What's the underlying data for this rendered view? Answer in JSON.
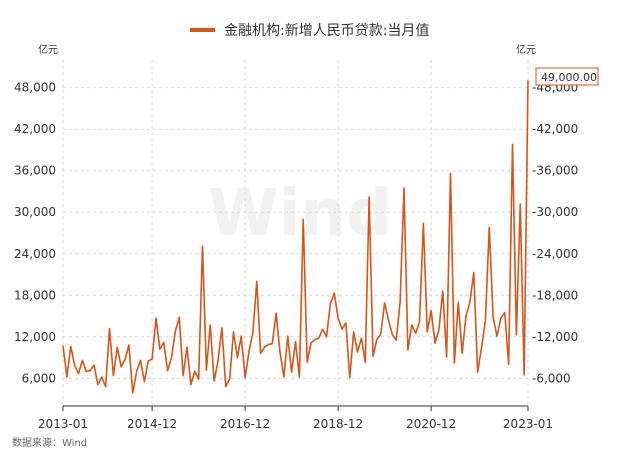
{
  "chart_data": {
    "type": "line",
    "legend": "金融机构:新增人民币贷款:当月值",
    "yunit_left": "亿元",
    "yunit_right": "亿元",
    "source": "数据来源：Wind",
    "watermark": "Wind",
    "ylim": [
      2000,
      52000
    ],
    "yticks": [
      6000,
      12000,
      18000,
      24000,
      30000,
      36000,
      42000,
      48000
    ],
    "ytick_labels": [
      "6,000",
      "12,000",
      "18,000",
      "24,000",
      "30,000",
      "36,000",
      "42,000",
      "48,000"
    ],
    "xticks": [
      {
        "index": 0,
        "label": "2013-01"
      },
      {
        "index": 23,
        "label": "2014-12"
      },
      {
        "index": 47,
        "label": "2016-12"
      },
      {
        "index": 71,
        "label": "2018-12"
      },
      {
        "index": 95,
        "label": "2020-12"
      },
      {
        "index": 120,
        "label": "2023-01"
      }
    ],
    "last_value_label": "49,000.00",
    "grid": true,
    "color": "#d2561e",
    "series": [
      {
        "x_start": "2013-01",
        "frequency": "monthly",
        "values": [
          10700,
          6200,
          10600,
          7900,
          6700,
          8600,
          7000,
          7100,
          7900,
          5100,
          6200,
          4800,
          13200,
          6400,
          10500,
          7700,
          8700,
          10800,
          3900,
          7000,
          8600,
          5500,
          8500,
          8800,
          14700,
          10200,
          11200,
          7100,
          9000,
          12800,
          14800,
          6400,
          10500,
          5100,
          7000,
          5900,
          25100,
          7200,
          13700,
          5600,
          8500,
          13300,
          4800,
          5900,
          12700,
          9000,
          12100,
          6100,
          9900,
          12600,
          20000,
          9600,
          10500,
          10900,
          11000,
          15400,
          9800,
          6200,
          12100,
          6900,
          11300,
          6200,
          29000,
          8300,
          11100,
          11600,
          11800,
          13100,
          12000,
          16800,
          18300,
          14700,
          13100,
          14000,
          6100,
          12700,
          9800,
          11800,
          8300,
          32200,
          9200,
          11600,
          12400,
          16900,
          14400,
          12300,
          11500,
          17100,
          33500,
          10100,
          13700,
          12500,
          14200,
          28400,
          12700,
          15800,
          11100,
          13000,
          18600,
          9100,
          35600,
          8200,
          17000,
          9600,
          15000,
          17000,
          21300,
          6900,
          10400,
          14300,
          27800,
          14800,
          12100,
          14700,
          15500,
          8000,
          39800,
          12300,
          31200,
          6500
        ]
      }
    ],
    "points": [
      {
        "x": "2013-01",
        "y": 10700
      },
      {
        "x": "2013-02",
        "y": 6200
      },
      {
        "x": "2013-03",
        "y": 10600
      },
      {
        "x": "2013-04",
        "y": 7900
      },
      {
        "x": "2013-05",
        "y": 6700
      },
      {
        "x": "2013-06",
        "y": 8600
      },
      {
        "x": "2013-07",
        "y": 7000
      },
      {
        "x": "2013-08",
        "y": 7100
      },
      {
        "x": "2013-09",
        "y": 7900
      },
      {
        "x": "2013-10",
        "y": 5100
      },
      {
        "x": "2013-11",
        "y": 6200
      },
      {
        "x": "2013-12",
        "y": 4800
      },
      {
        "x": "2014-01",
        "y": 13200
      },
      {
        "x": "2014-02",
        "y": 6400
      },
      {
        "x": "2014-03",
        "y": 10500
      },
      {
        "x": "2014-04",
        "y": 7700
      },
      {
        "x": "2014-05",
        "y": 8700
      },
      {
        "x": "2014-06",
        "y": 10800
      },
      {
        "x": "2014-07",
        "y": 3900
      },
      {
        "x": "2014-08",
        "y": 7000
      },
      {
        "x": "2014-09",
        "y": 8600
      },
      {
        "x": "2014-10",
        "y": 5500
      },
      {
        "x": "2014-11",
        "y": 8500
      },
      {
        "x": "2014-12",
        "y": 8800
      },
      {
        "x": "2015-01",
        "y": 14700
      },
      {
        "x": "2015-02",
        "y": 10200
      },
      {
        "x": "2015-03",
        "y": 11200
      },
      {
        "x": "2015-04",
        "y": 7100
      },
      {
        "x": "2015-05",
        "y": 9000
      },
      {
        "x": "2015-06",
        "y": 12800
      },
      {
        "x": "2015-07",
        "y": 14800
      },
      {
        "x": "2015-08",
        "y": 6400
      },
      {
        "x": "2015-09",
        "y": 10500
      },
      {
        "x": "2015-10",
        "y": 5100
      },
      {
        "x": "2015-11",
        "y": 7000
      },
      {
        "x": "2015-12",
        "y": 5900
      },
      {
        "x": "2016-01",
        "y": 25100
      },
      {
        "x": "2016-02",
        "y": 7200
      },
      {
        "x": "2016-03",
        "y": 13700
      },
      {
        "x": "2016-04",
        "y": 5600
      },
      {
        "x": "2016-05",
        "y": 8500
      },
      {
        "x": "2016-06",
        "y": 13300
      },
      {
        "x": "2016-07",
        "y": 4800
      },
      {
        "x": "2016-08",
        "y": 5900
      },
      {
        "x": "2016-09",
        "y": 12700
      },
      {
        "x": "2016-10",
        "y": 9000
      },
      {
        "x": "2016-11",
        "y": 12100
      },
      {
        "x": "2016-12",
        "y": 6100
      },
      {
        "x": "2017-01",
        "y": 9900
      },
      {
        "x": "2017-02",
        "y": 12600
      },
      {
        "x": "2017-03",
        "y": 20000
      },
      {
        "x": "2017-04",
        "y": 9600
      },
      {
        "x": "2017-05",
        "y": 10500
      },
      {
        "x": "2017-06",
        "y": 10900
      },
      {
        "x": "2017-07",
        "y": 11000
      },
      {
        "x": "2017-08",
        "y": 15400
      },
      {
        "x": "2017-09",
        "y": 9800
      },
      {
        "x": "2017-10",
        "y": 6200
      },
      {
        "x": "2017-11",
        "y": 12100
      },
      {
        "x": "2017-12",
        "y": 6900
      },
      {
        "x": "2018-01",
        "y": 11300
      },
      {
        "x": "2018-02",
        "y": 6200
      },
      {
        "x": "2018-03",
        "y": 29000
      },
      {
        "x": "2018-04",
        "y": 8300
      },
      {
        "x": "2018-05",
        "y": 11100
      },
      {
        "x": "2018-06",
        "y": 11600
      },
      {
        "x": "2018-07",
        "y": 11800
      },
      {
        "x": "2018-08",
        "y": 13100
      },
      {
        "x": "2018-09",
        "y": 12000
      },
      {
        "x": "2018-10",
        "y": 16800
      },
      {
        "x": "2018-11",
        "y": 18300
      },
      {
        "x": "2018-12",
        "y": 14700
      },
      {
        "x": "2019-01",
        "y": 13100
      },
      {
        "x": "2019-02",
        "y": 14000
      },
      {
        "x": "2019-03",
        "y": 6100
      },
      {
        "x": "2019-04",
        "y": 12700
      },
      {
        "x": "2019-05",
        "y": 9800
      },
      {
        "x": "2019-06",
        "y": 11800
      },
      {
        "x": "2019-07",
        "y": 8300
      },
      {
        "x": "2019-08",
        "y": 32200
      },
      {
        "x": "2019-09",
        "y": 9200
      },
      {
        "x": "2019-10",
        "y": 11600
      },
      {
        "x": "2019-11",
        "y": 12400
      },
      {
        "x": "2019-12",
        "y": 16900
      },
      {
        "x": "2020-01",
        "y": 14400
      },
      {
        "x": "2020-02",
        "y": 12300
      },
      {
        "x": "2020-03",
        "y": 11500
      },
      {
        "x": "2020-04",
        "y": 17100
      },
      {
        "x": "2020-05",
        "y": 33500
      },
      {
        "x": "2020-06",
        "y": 10100
      },
      {
        "x": "2020-07",
        "y": 13700
      },
      {
        "x": "2020-08",
        "y": 12500
      },
      {
        "x": "2020-09",
        "y": 14200
      },
      {
        "x": "2020-10",
        "y": 28400
      },
      {
        "x": "2020-11",
        "y": 12700
      },
      {
        "x": "2020-12",
        "y": 15800
      },
      {
        "x": "2021-01",
        "y": 11100
      },
      {
        "x": "2021-02",
        "y": 13000
      },
      {
        "x": "2021-03",
        "y": 18600
      },
      {
        "x": "2021-04",
        "y": 9100
      },
      {
        "x": "2021-05",
        "y": 35600
      },
      {
        "x": "2021-06",
        "y": 8200
      },
      {
        "x": "2021-07",
        "y": 17000
      },
      {
        "x": "2021-08",
        "y": 9600
      },
      {
        "x": "2021-09",
        "y": 15000
      },
      {
        "x": "2021-10",
        "y": 17000
      },
      {
        "x": "2021-11",
        "y": 21300
      },
      {
        "x": "2021-12",
        "y": 6900
      },
      {
        "x": "2022-01",
        "y": 10400
      },
      {
        "x": "2022-02",
        "y": 14300
      },
      {
        "x": "2022-03",
        "y": 27800
      },
      {
        "x": "2022-04",
        "y": 14800
      },
      {
        "x": "2022-05",
        "y": 12100
      },
      {
        "x": "2022-06",
        "y": 14700
      },
      {
        "x": "2022-07",
        "y": 15500
      },
      {
        "x": "2022-08",
        "y": 8000
      },
      {
        "x": "2022-09",
        "y": 39800
      },
      {
        "x": "2022-10",
        "y": 12300
      },
      {
        "x": "2022-11",
        "y": 31200
      },
      {
        "x": "2022-12",
        "y": 6500
      }
    ],
    "tail": [
      {
        "x": "2023-01",
        "y": 49000
      }
    ]
  }
}
